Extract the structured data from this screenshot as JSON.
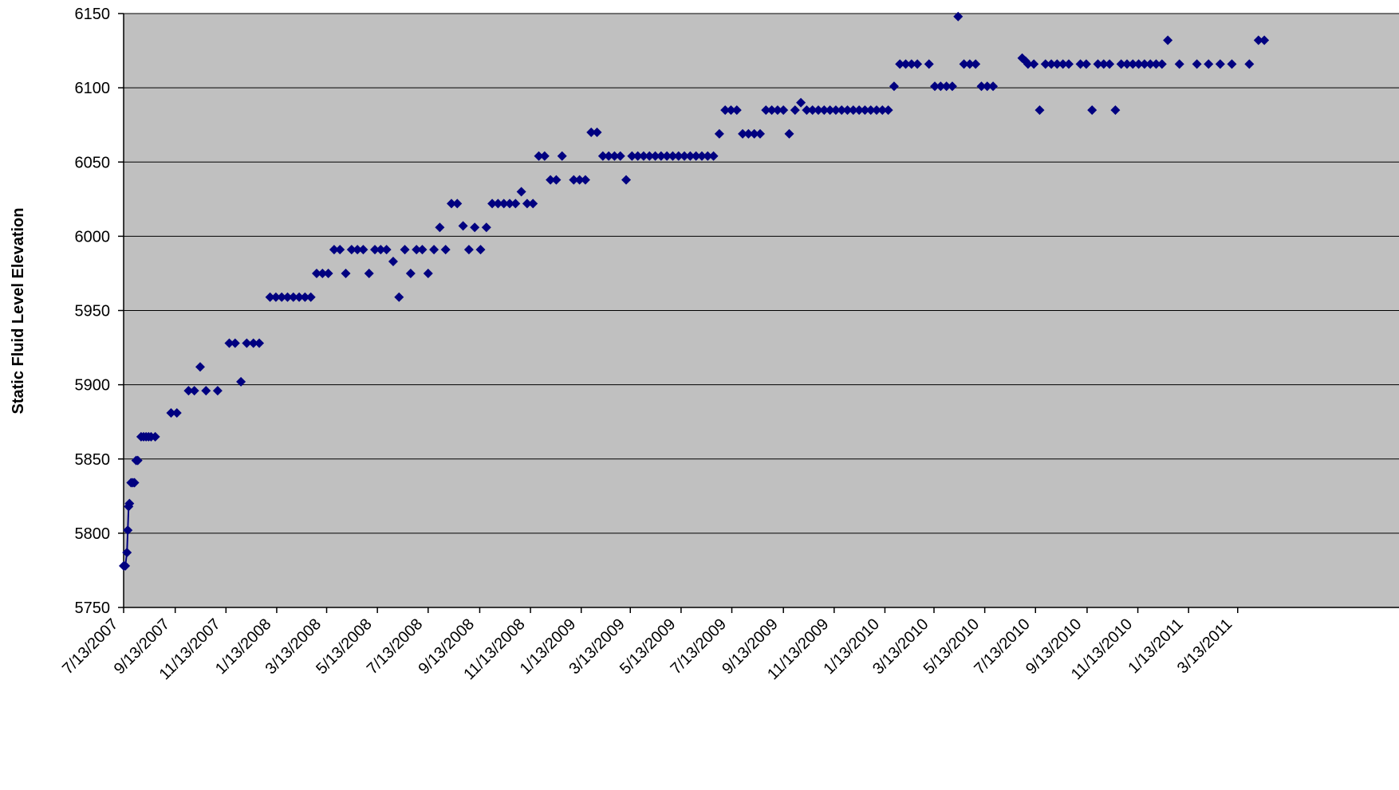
{
  "chart_data": {
    "type": "scatter",
    "title": "",
    "xlabel": "",
    "ylabel": "Static Fluid Level Elevation",
    "ylim": [
      5750,
      6150
    ],
    "yticks": [
      5750,
      5800,
      5850,
      5900,
      5950,
      6000,
      6050,
      6100,
      6150
    ],
    "xlim": [
      "7/13/2007",
      "4/30/2011"
    ],
    "xticks": [
      "7/13/2007",
      "9/13/2007",
      "11/13/2007",
      "1/13/2008",
      "3/13/2008",
      "5/13/2008",
      "7/13/2008",
      "9/13/2008",
      "11/13/2008",
      "1/13/2009",
      "3/13/2009",
      "5/13/2009",
      "7/13/2009",
      "9/13/2009",
      "11/13/2009",
      "1/13/2010",
      "3/13/2010",
      "5/13/2010",
      "7/13/2010",
      "9/13/2010",
      "11/13/2010",
      "1/13/2011",
      "3/13/2011"
    ],
    "grid": true,
    "legend": "none",
    "colors": {
      "plot_bg": "#c0c0c0",
      "marker": "#000080",
      "grid": "#000000"
    },
    "marker": "diamond",
    "series": [
      {
        "line_points": 6,
        "points": [
          [
            "7/13/2007",
            5778
          ],
          [
            "7/15/2007",
            5778
          ],
          [
            "7/17/2007",
            5787
          ],
          [
            "7/18/2007",
            5802
          ],
          [
            "7/19/2007",
            5818
          ],
          [
            "7/20/2007",
            5820
          ],
          [
            "7/22/2007",
            5834
          ],
          [
            "7/24/2007",
            5834
          ],
          [
            "7/26/2007",
            5834
          ],
          [
            "7/28/2007",
            5849
          ],
          [
            "7/30/2007",
            5849
          ],
          [
            "8/3/2007",
            5865
          ],
          [
            "8/6/2007",
            5865
          ],
          [
            "8/9/2007",
            5865
          ],
          [
            "8/12/2007",
            5865
          ],
          [
            "8/15/2007",
            5865
          ],
          [
            "8/20/2007",
            5865
          ],
          [
            "9/8/2007",
            5881
          ],
          [
            "9/15/2007",
            5881
          ],
          [
            "9/29/2007",
            5896
          ],
          [
            "10/6/2007",
            5896
          ],
          [
            "10/13/2007",
            5912
          ],
          [
            "10/20/2007",
            5896
          ],
          [
            "11/3/2007",
            5896
          ],
          [
            "11/17/2007",
            5928
          ],
          [
            "11/24/2007",
            5928
          ],
          [
            "12/1/2007",
            5902
          ],
          [
            "12/8/2007",
            5928
          ],
          [
            "12/16/2007",
            5928
          ],
          [
            "12/23/2007",
            5928
          ],
          [
            "1/5/2008",
            5959
          ],
          [
            "1/12/2008",
            5959
          ],
          [
            "1/19/2008",
            5959
          ],
          [
            "1/26/2008",
            5959
          ],
          [
            "2/2/2008",
            5959
          ],
          [
            "2/9/2008",
            5959
          ],
          [
            "2/16/2008",
            5959
          ],
          [
            "2/23/2008",
            5959
          ],
          [
            "3/1/2008",
            5975
          ],
          [
            "3/8/2008",
            5975
          ],
          [
            "3/15/2008",
            5975
          ],
          [
            "3/22/2008",
            5991
          ],
          [
            "3/29/2008",
            5991
          ],
          [
            "4/5/2008",
            5975
          ],
          [
            "4/12/2008",
            5991
          ],
          [
            "4/19/2008",
            5991
          ],
          [
            "4/26/2008",
            5991
          ],
          [
            "5/3/2008",
            5975
          ],
          [
            "5/10/2008",
            5991
          ],
          [
            "5/17/2008",
            5991
          ],
          [
            "5/24/2008",
            5991
          ],
          [
            "6/1/2008",
            5983
          ],
          [
            "6/8/2008",
            5959
          ],
          [
            "6/15/2008",
            5991
          ],
          [
            "6/22/2008",
            5975
          ],
          [
            "6/29/2008",
            5991
          ],
          [
            "7/6/2008",
            5991
          ],
          [
            "7/13/2008",
            5975
          ],
          [
            "7/20/2008",
            5991
          ],
          [
            "7/27/2008",
            6006
          ],
          [
            "8/3/2008",
            5991
          ],
          [
            "8/10/2008",
            6022
          ],
          [
            "8/17/2008",
            6022
          ],
          [
            "8/24/2008",
            6007
          ],
          [
            "8/31/2008",
            5991
          ],
          [
            "9/7/2008",
            6006
          ],
          [
            "9/14/2008",
            5991
          ],
          [
            "9/21/2008",
            6006
          ],
          [
            "9/28/2008",
            6022
          ],
          [
            "10/5/2008",
            6022
          ],
          [
            "10/12/2008",
            6022
          ],
          [
            "10/19/2008",
            6022
          ],
          [
            "10/26/2008",
            6022
          ],
          [
            "11/2/2008",
            6030
          ],
          [
            "11/9/2008",
            6022
          ],
          [
            "11/16/2008",
            6022
          ],
          [
            "11/23/2008",
            6054
          ],
          [
            "11/30/2008",
            6054
          ],
          [
            "12/7/2008",
            6038
          ],
          [
            "12/14/2008",
            6038
          ],
          [
            "12/21/2008",
            6054
          ],
          [
            "1/4/2009",
            6038
          ],
          [
            "1/11/2009",
            6038
          ],
          [
            "1/18/2009",
            6038
          ],
          [
            "1/25/2009",
            6070
          ],
          [
            "2/1/2009",
            6070
          ],
          [
            "2/8/2009",
            6054
          ],
          [
            "2/15/2009",
            6054
          ],
          [
            "2/22/2009",
            6054
          ],
          [
            "3/1/2009",
            6054
          ],
          [
            "3/8/2009",
            6038
          ],
          [
            "3/15/2009",
            6054
          ],
          [
            "3/22/2009",
            6054
          ],
          [
            "3/29/2009",
            6054
          ],
          [
            "4/5/2009",
            6054
          ],
          [
            "4/12/2009",
            6054
          ],
          [
            "4/19/2009",
            6054
          ],
          [
            "4/26/2009",
            6054
          ],
          [
            "5/3/2009",
            6054
          ],
          [
            "5/10/2009",
            6054
          ],
          [
            "5/17/2009",
            6054
          ],
          [
            "5/24/2009",
            6054
          ],
          [
            "5/31/2009",
            6054
          ],
          [
            "6/7/2009",
            6054
          ],
          [
            "6/14/2009",
            6054
          ],
          [
            "6/21/2009",
            6054
          ],
          [
            "6/28/2009",
            6069
          ],
          [
            "7/5/2009",
            6085
          ],
          [
            "7/12/2009",
            6085
          ],
          [
            "7/19/2009",
            6085
          ],
          [
            "7/26/2009",
            6069
          ],
          [
            "8/2/2009",
            6069
          ],
          [
            "8/9/2009",
            6069
          ],
          [
            "8/16/2009",
            6069
          ],
          [
            "8/23/2009",
            6085
          ],
          [
            "8/30/2009",
            6085
          ],
          [
            "9/6/2009",
            6085
          ],
          [
            "9/13/2009",
            6085
          ],
          [
            "9/20/2009",
            6069
          ],
          [
            "9/27/2009",
            6085
          ],
          [
            "10/4/2009",
            6090
          ],
          [
            "10/11/2009",
            6085
          ],
          [
            "10/18/2009",
            6085
          ],
          [
            "10/25/2009",
            6085
          ],
          [
            "11/1/2009",
            6085
          ],
          [
            "11/8/2009",
            6085
          ],
          [
            "11/15/2009",
            6085
          ],
          [
            "11/22/2009",
            6085
          ],
          [
            "11/29/2009",
            6085
          ],
          [
            "12/6/2009",
            6085
          ],
          [
            "12/13/2009",
            6085
          ],
          [
            "12/20/2009",
            6085
          ],
          [
            "12/27/2009",
            6085
          ],
          [
            "1/3/2010",
            6085
          ],
          [
            "1/10/2010",
            6085
          ],
          [
            "1/17/2010",
            6085
          ],
          [
            "1/24/2010",
            6101
          ],
          [
            "1/31/2010",
            6116
          ],
          [
            "2/7/2010",
            6116
          ],
          [
            "2/14/2010",
            6116
          ],
          [
            "2/21/2010",
            6116
          ],
          [
            "3/7/2010",
            6116
          ],
          [
            "3/14/2010",
            6101
          ],
          [
            "3/21/2010",
            6101
          ],
          [
            "3/28/2010",
            6101
          ],
          [
            "4/4/2010",
            6101
          ],
          [
            "4/11/2010",
            6148
          ],
          [
            "4/18/2010",
            6116
          ],
          [
            "4/25/2010",
            6116
          ],
          [
            "5/2/2010",
            6116
          ],
          [
            "5/9/2010",
            6101
          ],
          [
            "5/16/2010",
            6101
          ],
          [
            "5/23/2010",
            6101
          ],
          [
            "6/27/2010",
            6120
          ],
          [
            "7/1/2010",
            6118
          ],
          [
            "7/4/2010",
            6116
          ],
          [
            "7/11/2010",
            6116
          ],
          [
            "7/18/2010",
            6085
          ],
          [
            "7/25/2010",
            6116
          ],
          [
            "8/1/2010",
            6116
          ],
          [
            "8/8/2010",
            6116
          ],
          [
            "8/15/2010",
            6116
          ],
          [
            "8/22/2010",
            6116
          ],
          [
            "9/5/2010",
            6116
          ],
          [
            "9/12/2010",
            6116
          ],
          [
            "9/19/2010",
            6085
          ],
          [
            "9/26/2010",
            6116
          ],
          [
            "10/3/2010",
            6116
          ],
          [
            "10/10/2010",
            6116
          ],
          [
            "10/17/2010",
            6085
          ],
          [
            "10/24/2010",
            6116
          ],
          [
            "10/31/2010",
            6116
          ],
          [
            "11/7/2010",
            6116
          ],
          [
            "11/14/2010",
            6116
          ],
          [
            "11/21/2010",
            6116
          ],
          [
            "11/28/2010",
            6116
          ],
          [
            "12/5/2010",
            6116
          ],
          [
            "12/12/2010",
            6116
          ],
          [
            "12/19/2010",
            6132
          ],
          [
            "1/2/2011",
            6116
          ],
          [
            "1/23/2011",
            6116
          ],
          [
            "2/6/2011",
            6116
          ],
          [
            "2/20/2011",
            6116
          ],
          [
            "3/6/2011",
            6116
          ],
          [
            "3/27/2011",
            6116
          ],
          [
            "4/7/2011",
            6132
          ],
          [
            "4/14/2011",
            6132
          ]
        ]
      }
    ]
  }
}
